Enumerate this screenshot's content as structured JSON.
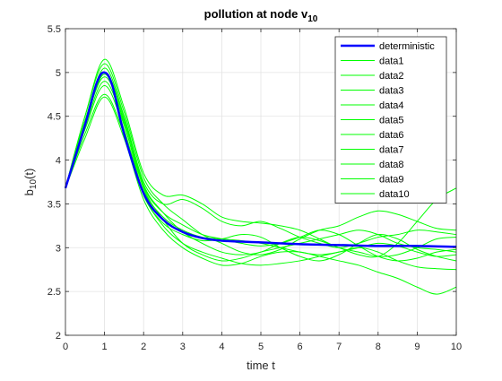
{
  "chart_data": {
    "type": "line",
    "title_main": "pollution at node v",
    "title_sub": "10",
    "xlabel": "time t",
    "ylabel_main": "b",
    "ylabel_sub": "10",
    "ylabel_tail": "(t)",
    "xlim": [
      0,
      10
    ],
    "ylim": [
      2,
      5.5
    ],
    "xticks": [
      0,
      1,
      2,
      3,
      4,
      5,
      6,
      7,
      8,
      9,
      10
    ],
    "yticks": [
      2,
      2.5,
      3,
      3.5,
      4,
      4.5,
      5,
      5.5
    ],
    "grid": true,
    "legend_position": "top-right",
    "colors": {
      "deterministic": "#0000ff",
      "data": "#00ff00"
    },
    "series": [
      {
        "name": "deterministic",
        "x": [
          0,
          0.5,
          0.8,
          1,
          1.2,
          1.5,
          2,
          2.5,
          3,
          3.5,
          4,
          5,
          6,
          7,
          8,
          9,
          10
        ],
        "y": [
          3.68,
          4.4,
          4.88,
          5,
          4.85,
          4.3,
          3.62,
          3.32,
          3.18,
          3.11,
          3.08,
          3.06,
          3.04,
          3.03,
          3.02,
          3.02,
          3.01
        ]
      },
      {
        "name": "data1",
        "x": [
          0,
          0.5,
          1,
          1.5,
          2,
          2.5,
          3,
          3.5,
          4,
          4.5,
          5,
          5.5,
          6,
          6.5,
          7,
          7.5,
          8,
          8.5,
          9,
          9.5,
          10
        ],
        "y": [
          3.68,
          4.42,
          4.95,
          4.45,
          3.7,
          3.4,
          3.26,
          3.15,
          3.1,
          3.05,
          3.02,
          3.05,
          3.12,
          3.2,
          3.15,
          3.02,
          2.9,
          2.85,
          2.88,
          2.95,
          2.98
        ]
      },
      {
        "name": "data2",
        "x": [
          0,
          0.5,
          1,
          1.5,
          2,
          2.5,
          3,
          3.5,
          4,
          4.5,
          5,
          5.5,
          6,
          6.5,
          7,
          7.5,
          8,
          8.5,
          9,
          9.5,
          10
        ],
        "y": [
          3.68,
          4.5,
          5.1,
          4.55,
          3.8,
          3.5,
          3.32,
          3.15,
          3.05,
          2.95,
          2.92,
          2.98,
          3.1,
          3.2,
          3.25,
          3.35,
          3.42,
          3.38,
          3.3,
          3.22,
          3.2
        ]
      },
      {
        "name": "data3",
        "x": [
          0,
          0.5,
          1,
          1.5,
          2,
          2.5,
          3,
          3.5,
          4,
          4.5,
          5,
          5.5,
          6,
          6.5,
          7,
          7.5,
          8,
          8.5,
          9,
          9.5,
          10
        ],
        "y": [
          3.68,
          4.3,
          4.75,
          4.3,
          3.65,
          3.35,
          3.2,
          3.12,
          3.1,
          3.08,
          3.05,
          3.0,
          2.95,
          2.92,
          2.95,
          3.0,
          3.05,
          3.02,
          2.95,
          2.9,
          2.92
        ]
      },
      {
        "name": "data4",
        "x": [
          0,
          0.5,
          1,
          1.5,
          2,
          2.5,
          3,
          3.5,
          4,
          4.5,
          5,
          5.5,
          6,
          6.5,
          7,
          7.5,
          8,
          8.5,
          9,
          9.5,
          10
        ],
        "y": [
          3.68,
          4.45,
          5.05,
          4.5,
          3.75,
          3.5,
          3.55,
          3.45,
          3.3,
          3.25,
          3.3,
          3.22,
          3.12,
          3.05,
          3.0,
          3.05,
          3.12,
          3.15,
          3.2,
          3.18,
          3.15
        ]
      },
      {
        "name": "data5",
        "x": [
          0,
          0.5,
          1,
          1.5,
          2,
          2.5,
          3,
          3.5,
          4,
          4.5,
          5,
          5.5,
          6,
          6.5,
          7,
          7.5,
          8,
          8.5,
          9,
          9.5,
          10
        ],
        "y": [
          3.68,
          4.35,
          4.85,
          4.35,
          3.6,
          3.28,
          3.15,
          3.08,
          3.1,
          3.15,
          3.12,
          3.0,
          2.9,
          2.85,
          2.92,
          3.05,
          3.15,
          3.1,
          2.98,
          2.9,
          2.85
        ]
      },
      {
        "name": "data6",
        "x": [
          0,
          0.5,
          1,
          1.5,
          2,
          2.5,
          3,
          3.5,
          4,
          4.5,
          5,
          5.5,
          6,
          6.5,
          7,
          7.5,
          8,
          8.5,
          9,
          9.5,
          10
        ],
        "y": [
          3.68,
          4.5,
          5.15,
          4.6,
          3.85,
          3.6,
          3.6,
          3.5,
          3.35,
          3.3,
          3.28,
          3.25,
          3.2,
          3.1,
          3.0,
          2.95,
          2.9,
          2.92,
          3.0,
          3.1,
          3.12
        ]
      },
      {
        "name": "data7",
        "x": [
          0,
          0.5,
          1,
          1.5,
          2,
          2.5,
          3,
          3.5,
          4,
          4.5,
          5,
          5.5,
          6,
          6.5,
          7,
          7.5,
          8,
          8.5,
          9,
          9.5,
          10
        ],
        "y": [
          3.68,
          4.38,
          4.9,
          4.4,
          3.68,
          3.32,
          3.05,
          2.92,
          2.85,
          2.88,
          2.95,
          3.0,
          3.05,
          3.1,
          3.15,
          3.2,
          3.15,
          3.05,
          3.0,
          2.98,
          2.95
        ]
      },
      {
        "name": "data8",
        "x": [
          0,
          0.5,
          1,
          1.5,
          2,
          2.5,
          3,
          3.5,
          4,
          4.5,
          5,
          5.5,
          6,
          6.5,
          7,
          7.5,
          8,
          8.5,
          9,
          9.5,
          10
        ],
        "y": [
          3.68,
          4.25,
          4.72,
          4.25,
          3.55,
          3.2,
          3.0,
          2.88,
          2.8,
          2.82,
          2.9,
          2.95,
          2.95,
          2.9,
          2.85,
          2.8,
          2.72,
          2.65,
          2.55,
          2.47,
          2.55
        ]
      },
      {
        "name": "data9",
        "x": [
          0,
          0.5,
          1,
          1.5,
          2,
          2.5,
          3,
          3.5,
          4,
          4.5,
          5,
          5.5,
          6,
          6.5,
          7,
          7.5,
          8,
          8.5,
          9,
          9.5,
          10
        ],
        "y": [
          3.68,
          4.4,
          4.98,
          4.42,
          3.62,
          3.25,
          3.05,
          2.95,
          2.88,
          2.82,
          2.8,
          2.82,
          2.85,
          2.9,
          2.95,
          3.0,
          2.95,
          2.85,
          2.78,
          2.76,
          2.75
        ]
      },
      {
        "name": "data10",
        "x": [
          0,
          0.5,
          1,
          1.5,
          2,
          2.5,
          3,
          3.5,
          4,
          4.5,
          5,
          5.5,
          6,
          6.5,
          7,
          7.5,
          8,
          8.5,
          9,
          9.5,
          10
        ],
        "y": [
          3.68,
          4.42,
          5.0,
          4.48,
          3.72,
          3.4,
          3.18,
          3.05,
          2.95,
          2.92,
          2.95,
          3.05,
          3.12,
          3.08,
          3.0,
          2.92,
          2.9,
          3.05,
          3.3,
          3.55,
          3.68
        ]
      }
    ]
  }
}
